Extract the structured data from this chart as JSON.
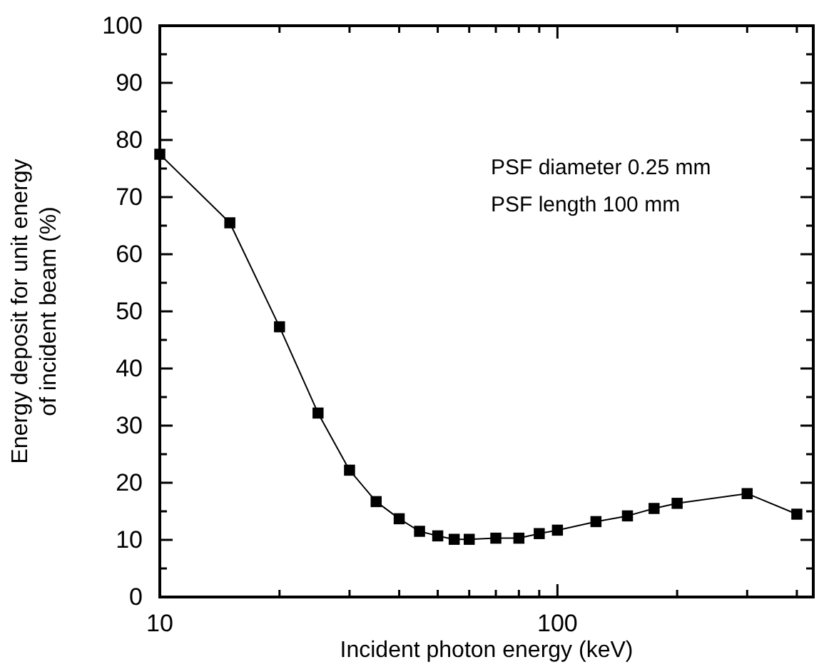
{
  "chart_data": {
    "type": "line",
    "xlabel": "Incident photon energy (keV)",
    "ylabel": "Energy deposit for unit energy\nof incident beam (%)",
    "annotations": [
      "PSF diameter 0.25 mm",
      "PSF length 100 mm"
    ],
    "log": "x",
    "xlim": [
      10,
      440
    ],
    "ylim": [
      0,
      100
    ],
    "xticks": [
      10,
      {
        "value": 20,
        "label": null
      },
      {
        "value": 30,
        "label": null
      },
      {
        "value": 40,
        "label": null
      },
      {
        "value": 50,
        "label": null
      },
      {
        "value": 60,
        "label": null
      },
      {
        "value": 70,
        "label": null
      },
      {
        "value": 80,
        "label": null
      },
      {
        "value": 90,
        "label": null
      },
      100,
      {
        "value": 200,
        "label": null
      },
      {
        "value": 300,
        "label": null
      },
      {
        "value": 400,
        "label": null
      }
    ],
    "yticks": [
      0,
      {
        "value": 5,
        "label": null
      },
      10,
      {
        "value": 15,
        "label": null
      },
      20,
      {
        "value": 25,
        "label": null
      },
      30,
      {
        "value": 35,
        "label": null
      },
      40,
      {
        "value": 45,
        "label": null
      },
      50,
      {
        "value": 55,
        "label": null
      },
      60,
      {
        "value": 65,
        "label": null
      },
      70,
      {
        "value": 75,
        "label": null
      },
      80,
      {
        "value": 85,
        "label": null
      },
      90,
      {
        "value": 95,
        "label": null
      },
      100
    ],
    "marker": "square",
    "line_style": "solid",
    "series": [
      {
        "color": "#000000",
        "x": [
          10,
          15,
          20,
          25,
          30,
          35,
          40,
          45,
          50,
          55,
          60,
          70,
          80,
          90,
          100,
          125,
          150,
          175,
          200,
          300,
          400
        ],
        "values": [
          77.5,
          65.5,
          47.3,
          32.2,
          22.2,
          16.7,
          13.7,
          11.5,
          10.7,
          10.1,
          10.1,
          10.3,
          10.3,
          11.1,
          11.7,
          13.2,
          14.2,
          15.5,
          16.4,
          18.1,
          14.5
        ]
      }
    ]
  }
}
